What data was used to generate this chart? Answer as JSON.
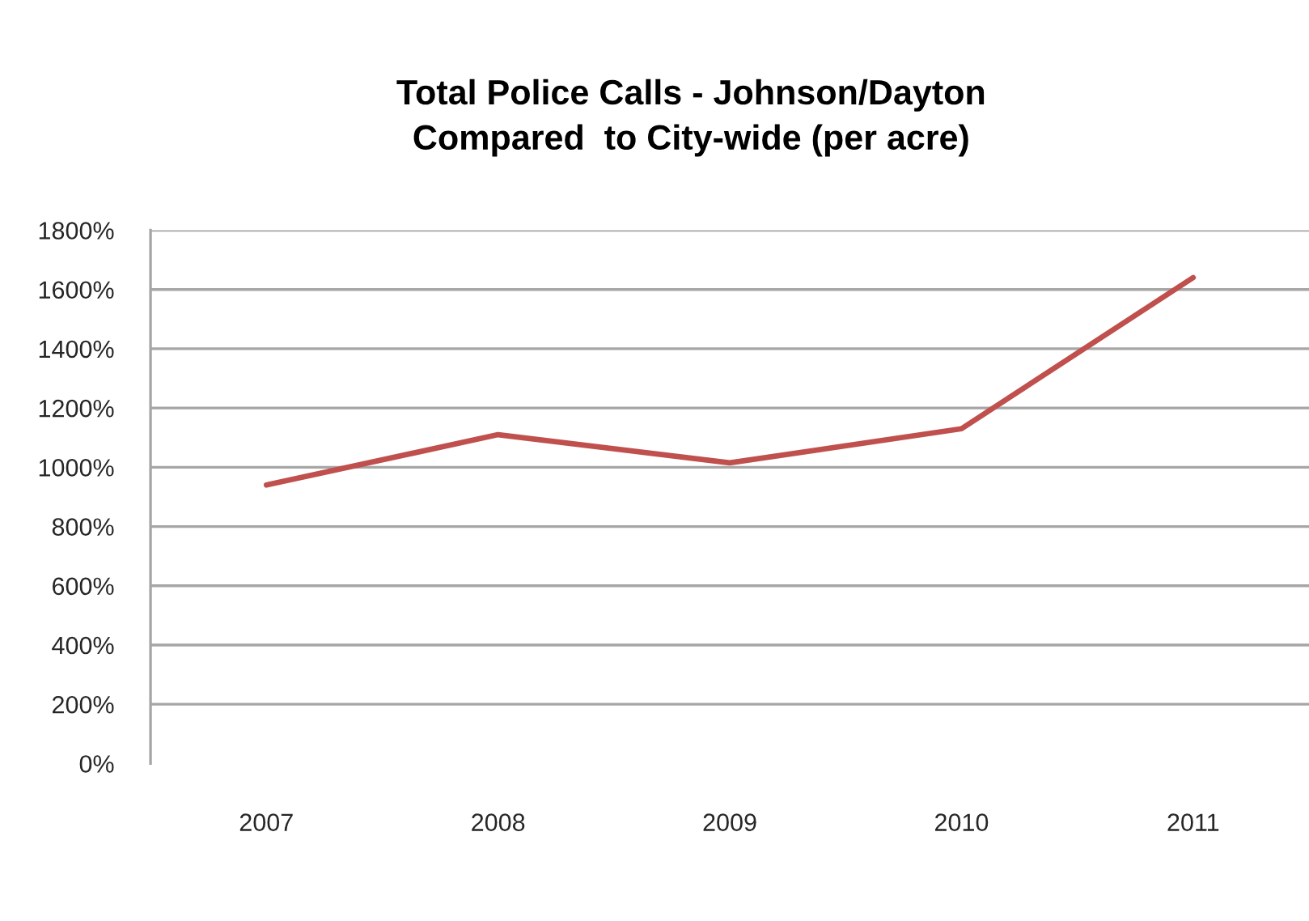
{
  "chart_data": {
    "type": "line",
    "title": "Total Police Calls - Johnson/Dayton\nCompared  to City-wide (per acre)",
    "categories": [
      "2007",
      "2008",
      "2009",
      "2010",
      "2011"
    ],
    "series": [
      {
        "color": "#c0504d",
        "values": [
          940,
          1110,
          1015,
          1130,
          1640
        ]
      }
    ],
    "ylim": [
      0,
      1800
    ],
    "yticks": [
      {
        "value": 0,
        "label": "0%"
      },
      {
        "value": 200,
        "label": "200%"
      },
      {
        "value": 400,
        "label": "400%"
      },
      {
        "value": 600,
        "label": "600%"
      },
      {
        "value": 800,
        "label": "800%"
      },
      {
        "value": 1000,
        "label": "1000%"
      },
      {
        "value": 1200,
        "label": "1200%"
      },
      {
        "value": 1400,
        "label": "1400%"
      },
      {
        "value": 1600,
        "label": "1600%"
      },
      {
        "value": 1800,
        "label": "1800%"
      }
    ],
    "grid": "y"
  }
}
